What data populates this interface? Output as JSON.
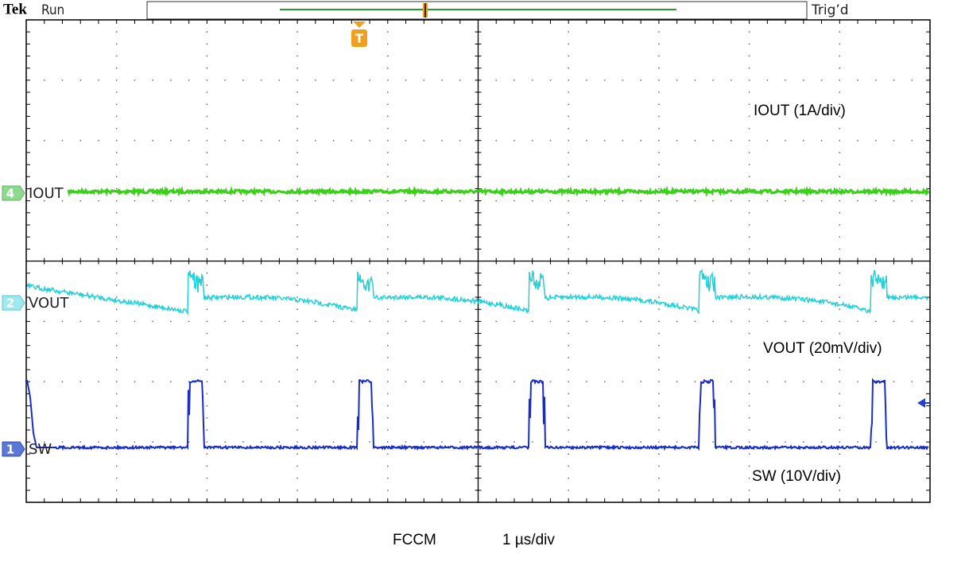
{
  "header": {
    "brand": "Tek",
    "status": "Run",
    "trigger": "Trig’d"
  },
  "trigger_marker": "T",
  "channels": [
    {
      "number": "4",
      "name": "IOUT"
    },
    {
      "number": "2",
      "name": "VOUT"
    },
    {
      "number": "1",
      "name": "SW"
    }
  ],
  "annotations": [
    "IOUT (1A/div)",
    "VOUT (20mV/div)",
    "SW (10V/div)"
  ],
  "footer": {
    "mode": "FCCM",
    "timebase": "1 µs/div"
  }
}
